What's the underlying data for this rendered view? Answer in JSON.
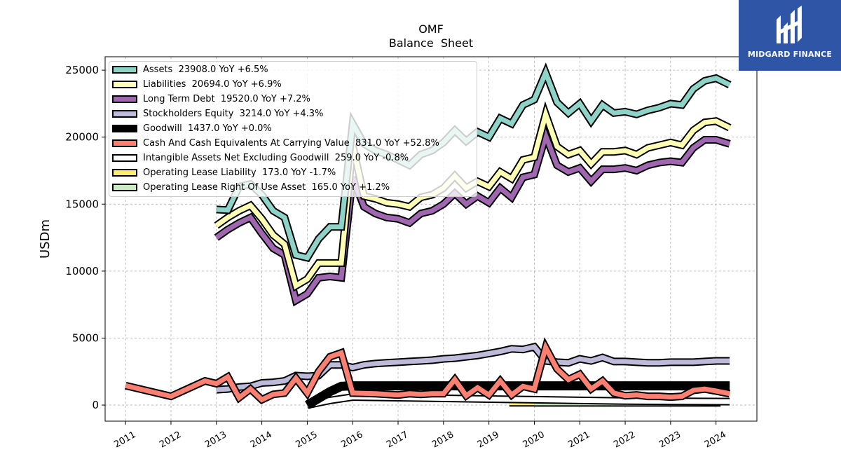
{
  "brand": {
    "name": "MIDGARD FINANCE",
    "bg_color": "#2f56a6"
  },
  "chart_data": {
    "type": "line",
    "title": "OMF",
    "subtitle": "Balance  Sheet",
    "ylabel": "USDm",
    "xlabel": "",
    "xlim": [
      2010.55,
      2024.9
    ],
    "ylim": [
      -1200,
      26000
    ],
    "x_ticks": [
      "2011",
      "2012",
      "2013",
      "2014",
      "2015",
      "2016",
      "2017",
      "2018",
      "2019",
      "2020",
      "2021",
      "2022",
      "2023",
      "2024"
    ],
    "y_ticks": [
      "0",
      "5000",
      "10000",
      "15000",
      "20000",
      "25000"
    ],
    "grid": true,
    "legend_position": "top-left",
    "series": [
      {
        "name": "Assets  23908.0 YoY +6.5%",
        "color": "#8dd3c7",
        "x": [
          2013.0,
          2013.25,
          2013.5,
          2013.75,
          2014.0,
          2014.25,
          2014.5,
          2014.75,
          2015.0,
          2015.25,
          2015.5,
          2015.75,
          2016.0,
          2016.25,
          2016.5,
          2016.75,
          2017.0,
          2017.25,
          2017.5,
          2017.75,
          2018.0,
          2018.25,
          2018.5,
          2018.75,
          2019.0,
          2019.25,
          2019.5,
          2019.75,
          2020.0,
          2020.25,
          2020.5,
          2020.75,
          2021.0,
          2021.25,
          2021.5,
          2021.75,
          2022.0,
          2022.25,
          2022.5,
          2022.75,
          2023.0,
          2023.25,
          2023.5,
          2023.75,
          2024.0,
          2024.3
        ],
        "values": [
          14600,
          14550,
          16300,
          16500,
          15700,
          14500,
          14000,
          11200,
          11000,
          12400,
          13300,
          13300,
          21000,
          19500,
          19000,
          18700,
          18300,
          17900,
          18700,
          19000,
          19600,
          20500,
          19700,
          20400,
          20000,
          21400,
          21000,
          22400,
          22800,
          24800,
          22600,
          21800,
          22500,
          21200,
          22400,
          21800,
          21900,
          21700,
          22000,
          22200,
          22500,
          22400,
          23600,
          24200,
          24400,
          23900
        ]
      },
      {
        "name": "Liabilities  20694.0 YoY +6.9%",
        "color": "#ffffb3",
        "x": [
          2013.0,
          2013.25,
          2013.5,
          2013.75,
          2014.0,
          2014.25,
          2014.5,
          2014.75,
          2015.0,
          2015.25,
          2015.5,
          2015.75,
          2016.0,
          2016.25,
          2016.5,
          2016.75,
          2017.0,
          2017.25,
          2017.5,
          2017.75,
          2018.0,
          2018.25,
          2018.5,
          2018.75,
          2019.0,
          2019.25,
          2019.5,
          2019.75,
          2020.0,
          2020.25,
          2020.5,
          2020.75,
          2021.0,
          2021.25,
          2021.5,
          2021.75,
          2022.0,
          2022.25,
          2022.5,
          2022.75,
          2023.0,
          2023.25,
          2023.5,
          2023.75,
          2024.0,
          2024.3
        ],
        "values": [
          13400,
          14000,
          14500,
          14900,
          13900,
          12700,
          12000,
          8900,
          9400,
          10600,
          10600,
          10600,
          19400,
          15600,
          15400,
          15100,
          15000,
          14800,
          15500,
          15700,
          16200,
          17100,
          16200,
          16700,
          16300,
          17400,
          16900,
          18300,
          18500,
          21700,
          19300,
          18700,
          19000,
          18000,
          18900,
          18900,
          19000,
          18700,
          19200,
          19400,
          19600,
          19400,
          20500,
          21100,
          21200,
          20700
        ]
      },
      {
        "name": "Long Term Debt  19520.0 YoY +7.2%",
        "color": "#bebada",
        "linecolor": "#a066b0",
        "x": [
          2013.0,
          2013.25,
          2013.5,
          2013.75,
          2014.0,
          2014.25,
          2014.5,
          2014.75,
          2015.0,
          2015.25,
          2015.5,
          2015.75,
          2016.0,
          2016.25,
          2016.5,
          2016.75,
          2017.0,
          2017.25,
          2017.5,
          2017.75,
          2018.0,
          2018.25,
          2018.5,
          2018.75,
          2019.0,
          2019.25,
          2019.5,
          2019.75,
          2020.0,
          2020.25,
          2020.5,
          2020.75,
          2021.0,
          2021.25,
          2021.5,
          2021.75,
          2022.0,
          2022.25,
          2022.5,
          2022.75,
          2023.0,
          2023.25,
          2023.5,
          2023.75,
          2024.0,
          2024.3
        ],
        "values": [
          12500,
          13100,
          13600,
          14000,
          12800,
          11700,
          11200,
          7800,
          8300,
          9500,
          9600,
          9500,
          17000,
          14800,
          14300,
          14000,
          13900,
          13600,
          14300,
          14500,
          15000,
          15800,
          15000,
          15600,
          15100,
          16200,
          15500,
          17000,
          17200,
          20100,
          17900,
          17400,
          17700,
          16700,
          17600,
          17600,
          17700,
          17500,
          17900,
          18100,
          18200,
          18100,
          19200,
          19800,
          19800,
          19500
        ]
      },
      {
        "name": "Stockholders Equity  3214.0 YoY +4.3%",
        "color": "#bebada",
        "x": [
          2013.0,
          2013.25,
          2013.5,
          2013.75,
          2014.0,
          2014.25,
          2014.5,
          2014.75,
          2015.0,
          2015.25,
          2015.5,
          2015.75,
          2016.0,
          2016.25,
          2016.5,
          2016.75,
          2017.0,
          2017.25,
          2017.5,
          2017.75,
          2018.0,
          2018.25,
          2018.5,
          2018.75,
          2019.0,
          2019.25,
          2019.5,
          2019.75,
          2020.0,
          2020.25,
          2020.5,
          2020.75,
          2021.0,
          2021.25,
          2021.5,
          2021.75,
          2022.0,
          2022.25,
          2022.5,
          2022.75,
          2023.0,
          2023.25,
          2023.5,
          2023.75,
          2024.0,
          2024.3
        ],
        "values": [
          1150,
          1200,
          1350,
          1400,
          1650,
          1700,
          1800,
          2200,
          2150,
          2200,
          3000,
          3000,
          2800,
          3000,
          3100,
          3150,
          3200,
          3250,
          3300,
          3350,
          3450,
          3500,
          3600,
          3700,
          3850,
          4000,
          4200,
          4150,
          4350,
          3300,
          3200,
          3150,
          3450,
          3300,
          3550,
          3250,
          3250,
          3200,
          3150,
          3150,
          3200,
          3200,
          3200,
          3250,
          3300,
          3300
        ]
      },
      {
        "name": "Goodwill  1437.0 YoY +0.0%",
        "color": "#000000",
        "x": [
          2015.0,
          2015.25,
          2015.5,
          2015.75,
          2016.0,
          2016.5,
          2017.0,
          2018.0,
          2019.0,
          2020.0,
          2021.0,
          2022.0,
          2023.0,
          2024.3
        ],
        "values": [
          0,
          500,
          1000,
          1400,
          1437,
          1437,
          1437,
          1437,
          1437,
          1437,
          1437,
          1437,
          1437,
          1437
        ]
      },
      {
        "name": "Cash And Cash Equivalents At Carrying Value  831.0 YoY +52.8%",
        "color": "#fb8072",
        "x": [
          2011.0,
          2012.0,
          2012.75,
          2013.0,
          2013.25,
          2013.5,
          2013.75,
          2014.0,
          2014.25,
          2014.5,
          2014.75,
          2015.0,
          2015.25,
          2015.5,
          2015.75,
          2016.0,
          2016.5,
          2017.0,
          2017.25,
          2017.5,
          2017.75,
          2018.0,
          2018.25,
          2018.5,
          2018.75,
          2019.0,
          2019.25,
          2019.5,
          2019.75,
          2020.0,
          2020.25,
          2020.5,
          2020.75,
          2021.0,
          2021.25,
          2021.5,
          2021.75,
          2022.0,
          2022.25,
          2022.5,
          2022.75,
          2023.0,
          2023.25,
          2023.5,
          2023.75,
          2024.0,
          2024.3
        ],
        "values": [
          1450,
          650,
          1800,
          1600,
          2100,
          550,
          1200,
          400,
          800,
          900,
          2000,
          900,
          2500,
          3600,
          3900,
          900,
          850,
          750,
          850,
          800,
          850,
          850,
          1900,
          700,
          1300,
          750,
          1800,
          750,
          1400,
          1200,
          4300,
          2700,
          1900,
          2300,
          1200,
          1800,
          900,
          700,
          750,
          650,
          650,
          600,
          650,
          1100,
          1200,
          1050,
          850
        ]
      },
      {
        "name": "Intangible Assets Net Excluding Goodwill  259.0 YoY -0.8%",
        "color": "#ffffff",
        "x": [
          2015.0,
          2015.5,
          2016.0,
          2017.0,
          2018.0,
          2019.0,
          2020.0,
          2021.0,
          2022.0,
          2023.0,
          2024.3
        ],
        "values": [
          0,
          350,
          600,
          550,
          500,
          450,
          400,
          350,
          300,
          280,
          259
        ]
      },
      {
        "name": "Operating Lease Liability  173.0 YoY -1.7%",
        "color": "#ffed6f",
        "x": [
          2019.45,
          2020.0
        ],
        "values": [
          173,
          173
        ]
      },
      {
        "name": "Operating Lease Right Of Use Asset  165.0 YoY +1.2%",
        "color": "#ccebc5",
        "x": [
          2020.0,
          2024.1
        ],
        "values": [
          165,
          165
        ]
      }
    ]
  }
}
